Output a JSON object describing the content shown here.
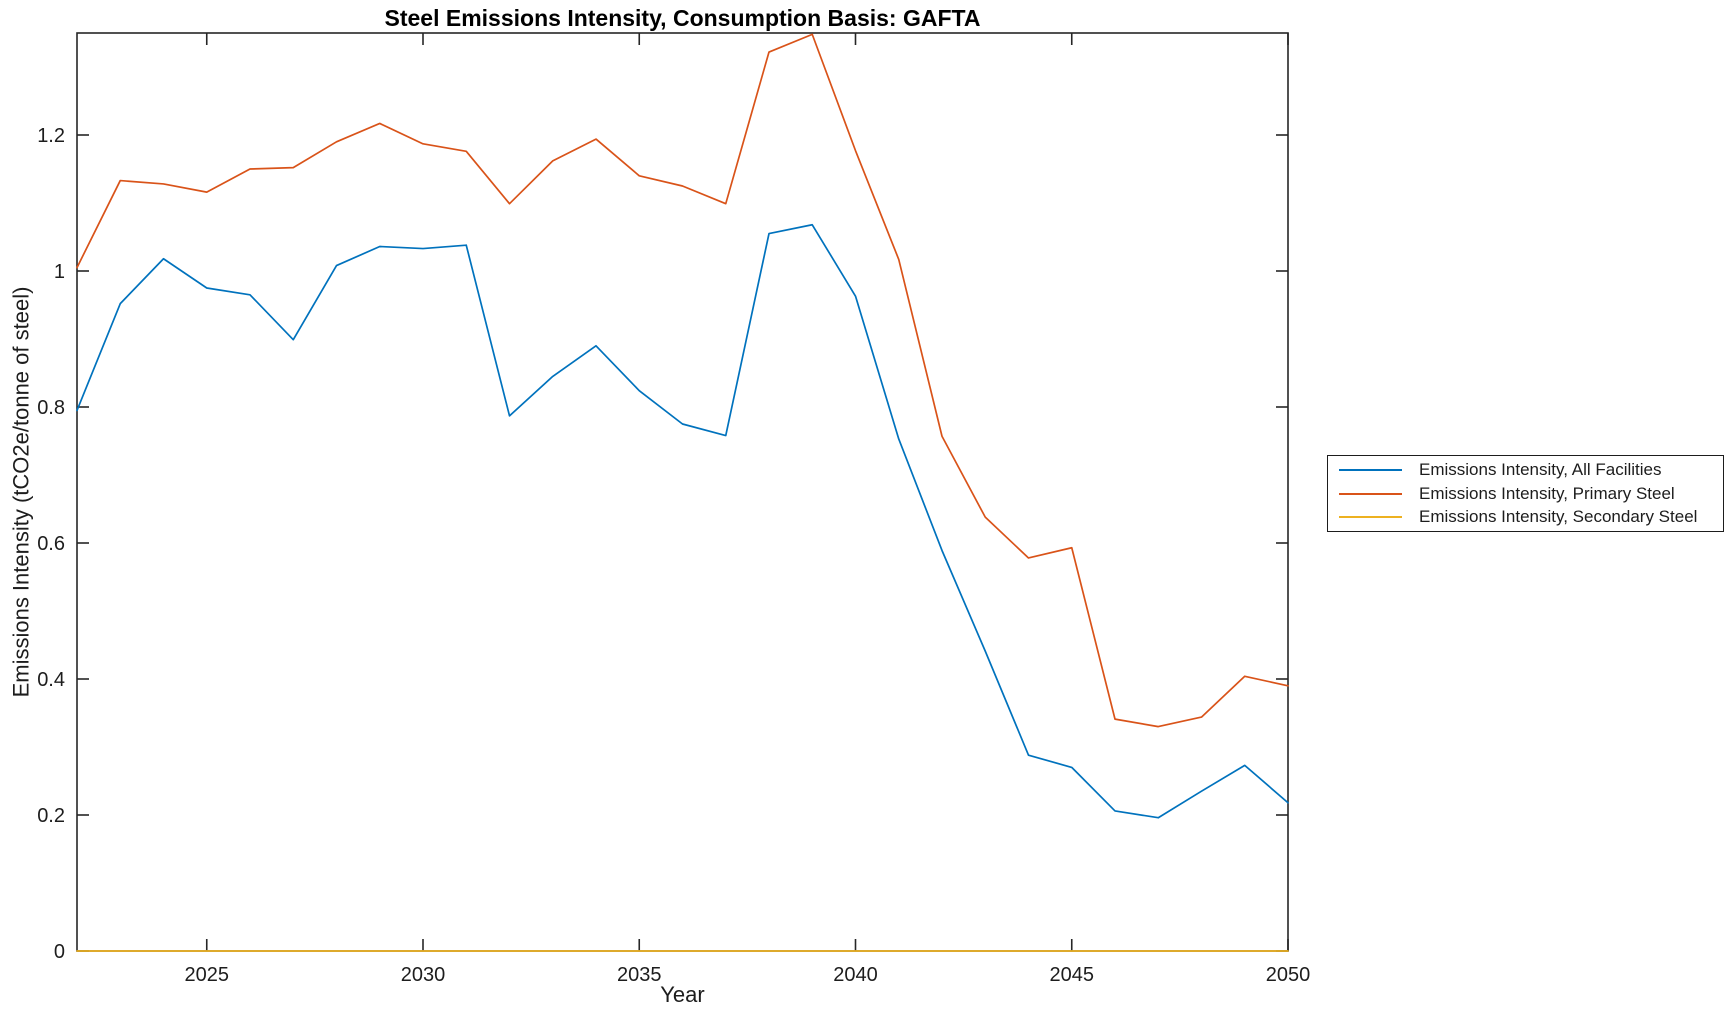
{
  "title": "Steel Emissions Intensity, Consumption Basis: GAFTA",
  "xlabel": "Year",
  "ylabel": "Emissions Intensity (tCO2e/tonne of steel)",
  "legend": {
    "position": "right-outside",
    "entries": [
      {
        "label": "Emissions Intensity, All Facilities",
        "color": "#0072BD"
      },
      {
        "label": "Emissions Intensity, Primary Steel",
        "color": "#D95319"
      },
      {
        "label": "Emissions Intensity, Secondary Steel",
        "color": "#EDB120"
      }
    ]
  },
  "chart_data": {
    "type": "line",
    "title": "Steel Emissions Intensity, Consumption Basis: GAFTA",
    "xlabel": "Year",
    "ylabel": "Emissions Intensity (tCO2e/tonne of steel)",
    "xlim": [
      2022,
      2050
    ],
    "ylim": [
      0,
      1.35
    ],
    "xticks": [
      2025,
      2030,
      2035,
      2040,
      2045,
      2050
    ],
    "yticks": [
      0,
      0.2,
      0.4,
      0.6,
      0.8,
      1.0,
      1.2
    ],
    "ytick_labels": [
      "0",
      "0.2",
      "0.4",
      "0.6",
      "0.8",
      "1",
      "1.2"
    ],
    "grid": false,
    "box": true,
    "tick_dir": "in",
    "axes_color": "#262626",
    "background": "#ffffff",
    "x": [
      2022,
      2023,
      2024,
      2025,
      2026,
      2027,
      2028,
      2029,
      2030,
      2031,
      2032,
      2033,
      2034,
      2035,
      2036,
      2037,
      2038,
      2039,
      2040,
      2041,
      2042,
      2043,
      2044,
      2045,
      2046,
      2047,
      2048,
      2049,
      2050
    ],
    "series": [
      {
        "name": "Emissions Intensity, All Facilities",
        "color": "#0072BD",
        "values": [
          0.795,
          0.952,
          1.018,
          0.975,
          0.965,
          0.899,
          1.008,
          1.036,
          1.033,
          1.038,
          0.787,
          0.845,
          0.89,
          0.824,
          0.775,
          0.758,
          1.055,
          1.068,
          0.963,
          0.753,
          0.589,
          0.441,
          0.288,
          0.27,
          0.206,
          0.196,
          0.235,
          0.273,
          0.218
        ]
      },
      {
        "name": "Emissions Intensity, Primary Steel",
        "color": "#D95319",
        "values": [
          1.005,
          1.133,
          1.128,
          1.116,
          1.15,
          1.152,
          1.19,
          1.217,
          1.187,
          1.176,
          1.099,
          1.162,
          1.194,
          1.14,
          1.125,
          1.099,
          1.322,
          1.348,
          1.177,
          1.017,
          0.757,
          0.638,
          0.578,
          0.593,
          0.341,
          0.33,
          0.344,
          0.404,
          0.39
        ]
      },
      {
        "name": "Emissions Intensity, Secondary Steel",
        "color": "#EDB120",
        "values": [
          0,
          0,
          0,
          0,
          0,
          0,
          0,
          0,
          0,
          0,
          0,
          0,
          0,
          0,
          0,
          0,
          0,
          0,
          0,
          0,
          0,
          0,
          0,
          0,
          0,
          0,
          0,
          0,
          0
        ]
      }
    ]
  }
}
